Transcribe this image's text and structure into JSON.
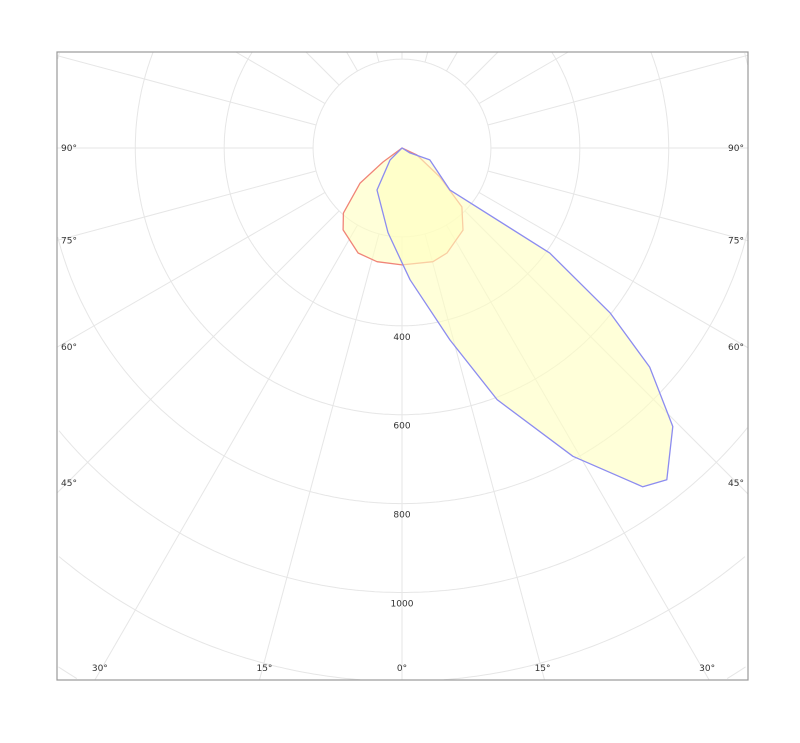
{
  "chart_data": {
    "type": "polar",
    "title": "",
    "radial_axis": {
      "ticks": [
        200,
        400,
        600,
        800,
        1000,
        1200,
        1400,
        1600
      ],
      "tick_labels": [
        "400",
        "600",
        "800",
        "1000"
      ],
      "labeled_values": [
        400,
        600,
        800,
        1000
      ]
    },
    "angular_axis": {
      "zero_direction": "down",
      "step_deg": 15,
      "side_labels": [
        {
          "angle": 90,
          "text": "90°"
        },
        {
          "angle": 75,
          "text": "75°"
        },
        {
          "angle": 60,
          "text": "60°"
        },
        {
          "angle": 45,
          "text": "45°"
        }
      ],
      "bottom_labels": [
        {
          "angle": -30,
          "text": "30°"
        },
        {
          "angle": -15,
          "text": "15°"
        },
        {
          "angle": 0,
          "text": "0°"
        },
        {
          "angle": 15,
          "text": "15°"
        },
        {
          "angle": 30,
          "text": "30°"
        }
      ]
    },
    "grid": true,
    "series": [
      {
        "color": "#f08478",
        "fill": "#ffffc0",
        "points": [
          [
            180,
            0
          ],
          [
            -53.6,
            53
          ],
          [
            -50,
            123
          ],
          [
            -42,
            197
          ],
          [
            -35.7,
            227
          ],
          [
            -22.7,
            256
          ],
          [
            -12.4,
            262
          ],
          [
            0,
            263
          ],
          [
            15.2,
            265
          ],
          [
            23.2,
            257
          ],
          [
            36.6,
            230
          ],
          [
            45.5,
            189
          ],
          [
            52.6,
            107
          ],
          [
            65,
            37
          ],
          [
            180,
            0
          ]
        ]
      },
      {
        "color": "#8c8cf0",
        "fill": "#ffffc0",
        "points": [
          [
            180,
            0
          ],
          [
            58,
            21
          ],
          [
            66.8,
            68
          ],
          [
            48.8,
            143
          ],
          [
            54.6,
            408
          ],
          [
            51.6,
            597
          ],
          [
            48.5,
            744
          ],
          [
            44.2,
            874
          ],
          [
            38.6,
            955
          ],
          [
            35.4,
            935
          ],
          [
            29,
            793
          ],
          [
            20.7,
            605
          ],
          [
            14,
            445
          ],
          [
            3.5,
            297
          ],
          [
            0,
            258
          ],
          [
            -9.4,
            193
          ],
          [
            -30.8,
            110
          ],
          [
            -45,
            38
          ],
          [
            180,
            0
          ]
        ]
      }
    ]
  }
}
